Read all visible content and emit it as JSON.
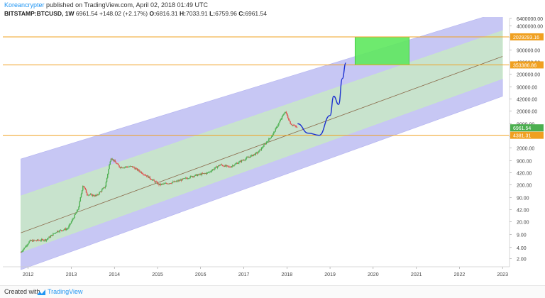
{
  "header": {
    "author": "Koreancrypter",
    "published": "published on TradingView.com, April 02, 2018 01:49 UTC",
    "symbol": "BITSTAMP:BTCUSD, 1W",
    "last": "6961.54",
    "change": "+148.02 (+2.17%)",
    "o_label": "O:",
    "o_value": "6816.31",
    "h_label": "H:",
    "h_value": "7033.91",
    "l_label": "L:",
    "l_value": "6759.96",
    "c_label": "C:",
    "c_value": "6961.54"
  },
  "footer": {
    "created_label": "Created with",
    "brand": "TradingView"
  },
  "colors": {
    "outer_channel": "#b4b4f0",
    "inner_channel": "#c8ecc0",
    "target_box": "#5ee85e",
    "horizontal_line": "#f0a020",
    "projection_curve": "#1a2fd0",
    "candle_up": "#4caf50",
    "candle_down": "#e05050",
    "price_badge": "#4caf50",
    "level_badge": "#f0a020"
  },
  "chart_data": {
    "type": "candlestick",
    "y_scale": "log",
    "x_ticks": [
      "2012",
      "2013",
      "2014",
      "2015",
      "2016",
      "2017",
      "2018",
      "2019",
      "2020",
      "2021",
      "2022",
      "2023"
    ],
    "y_ticks": [
      "6400000.00",
      "4000000.00",
      "2000000.00",
      "900000.00",
      "420000.00",
      "200000.00",
      "90000.00",
      "42000.00",
      "20000.00",
      "9000.00",
      "4000.00",
      "2000.00",
      "900.00",
      "420.00",
      "200.00",
      "90.00",
      "42.00",
      "20.00",
      "9.00",
      "4.00",
      "2.00"
    ],
    "horizontal_levels": [
      {
        "label": "2029293.16",
        "value": 2029293.16
      },
      {
        "label": "353386.86",
        "value": 353386.86
      },
      {
        "label": "4381.31",
        "value": 4381.31
      }
    ],
    "current_price": {
      "label": "6961.54",
      "value": 6961.54
    },
    "price_path": [
      {
        "date": "2011-11-01",
        "price": 3.0
      },
      {
        "date": "2012-01-15",
        "price": 6.0
      },
      {
        "date": "2012-06-01",
        "price": 6.5
      },
      {
        "date": "2012-09-01",
        "price": 11.0
      },
      {
        "date": "2012-12-01",
        "price": 13.0
      },
      {
        "date": "2013-03-01",
        "price": 45.0
      },
      {
        "date": "2013-04-10",
        "price": 200.0
      },
      {
        "date": "2013-05-15",
        "price": 110.0
      },
      {
        "date": "2013-08-01",
        "price": 100.0
      },
      {
        "date": "2013-10-15",
        "price": 180.0
      },
      {
        "date": "2013-12-01",
        "price": 1100.0
      },
      {
        "date": "2014-02-15",
        "price": 600.0
      },
      {
        "date": "2014-06-01",
        "price": 620.0
      },
      {
        "date": "2014-10-01",
        "price": 350.0
      },
      {
        "date": "2015-01-15",
        "price": 200.0
      },
      {
        "date": "2015-06-01",
        "price": 240.0
      },
      {
        "date": "2015-11-01",
        "price": 350.0
      },
      {
        "date": "2016-03-01",
        "price": 420.0
      },
      {
        "date": "2016-06-15",
        "price": 700.0
      },
      {
        "date": "2016-09-01",
        "price": 600.0
      },
      {
        "date": "2016-12-31",
        "price": 960.0
      },
      {
        "date": "2017-05-01",
        "price": 1500.0
      },
      {
        "date": "2017-09-01",
        "price": 4500.0
      },
      {
        "date": "2017-12-17",
        "price": 19600.0
      },
      {
        "date": "2018-02-01",
        "price": 9000.0
      },
      {
        "date": "2018-04-02",
        "price": 6961.54
      }
    ],
    "channel": {
      "anchor_dates": [
        "2011-11-01",
        "2023-01-01"
      ],
      "outer_upper": [
        1000.0,
        10000000.0
      ],
      "inner_upper": [
        100.0,
        3000000.0
      ],
      "mid": [
        10.0,
        600000.0
      ],
      "inner_lower": [
        3.0,
        150000.0
      ],
      "outer_lower": [
        1.0,
        50000.0
      ]
    },
    "target_zone": {
      "date_start": "2019-08-01",
      "date_end": "2020-11-01",
      "price_low": 353386.86,
      "price_high": 2029293.16
    },
    "projection_path": [
      {
        "date": "2018-04-01",
        "price": 9000.0
      },
      {
        "date": "2018-07-01",
        "price": 5000.0
      },
      {
        "date": "2018-10-01",
        "price": 4381.31
      },
      {
        "date": "2019-01-01",
        "price": 15000.0
      },
      {
        "date": "2019-02-01",
        "price": 50000.0
      },
      {
        "date": "2019-03-15",
        "price": 30000.0
      },
      {
        "date": "2019-04-15",
        "price": 150000.0
      },
      {
        "date": "2019-05-15",
        "price": 400000.0
      }
    ]
  }
}
